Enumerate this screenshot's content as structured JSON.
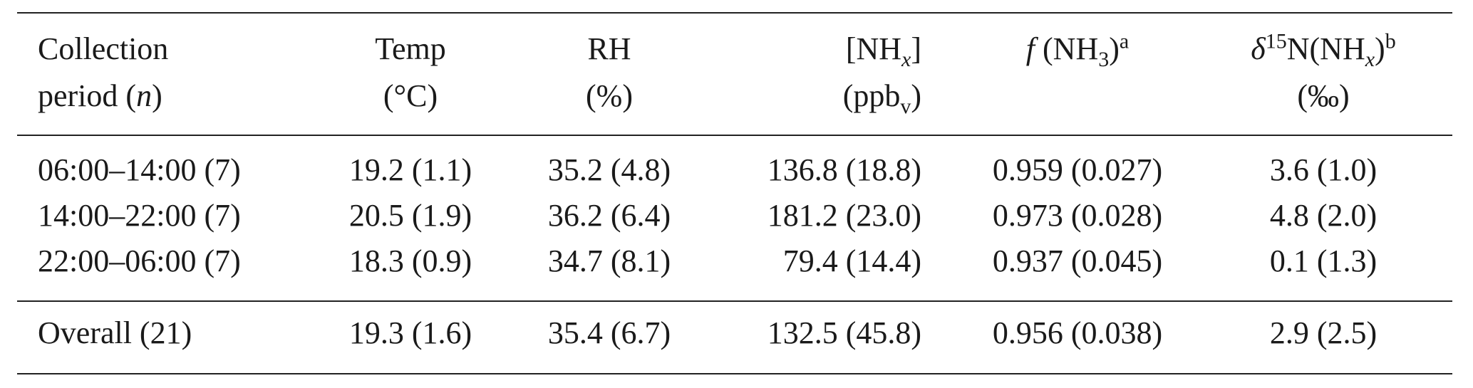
{
  "table": {
    "header": [
      [
        [
          "Collection"
        ],
        [
          "period (",
          "n",
          ")"
        ]
      ],
      [
        [
          "Temp"
        ],
        [
          "(°C)"
        ]
      ],
      [
        [
          "RH"
        ],
        [
          "(%)"
        ]
      ],
      [
        [
          "[NH",
          "x",
          "]"
        ],
        [
          "(ppb",
          "v",
          ")"
        ]
      ],
      [
        [
          "f",
          " (NH",
          "3",
          ")",
          "a"
        ]
      ],
      [
        [
          "δ",
          "15",
          "N(NH",
          "x",
          ")",
          "b"
        ],
        [
          "(‰)"
        ]
      ]
    ],
    "body": [
      [
        "06:00–14:00 (7)",
        "19.2 (1.1)",
        "35.2 (4.8)",
        "136.8 (18.8)",
        "0.959 (0.027)",
        "3.6 (1.0)"
      ],
      [
        "14:00–22:00 (7)",
        "20.5 (1.9)",
        "36.2 (6.4)",
        "181.2 (23.0)",
        "0.973 (0.028)",
        "4.8 (2.0)"
      ],
      [
        "22:00–06:00 (7)",
        "18.3 (0.9)",
        "34.7 (8.1)",
        "79.4 (14.4)",
        "0.937 (0.045)",
        "0.1 (1.3)"
      ]
    ],
    "footer": [
      "Overall (21)",
      "19.3 (1.6)",
      "35.4 (6.7)",
      "132.5 (45.8)",
      "0.956 (0.038)",
      "2.9 (2.5)"
    ]
  }
}
